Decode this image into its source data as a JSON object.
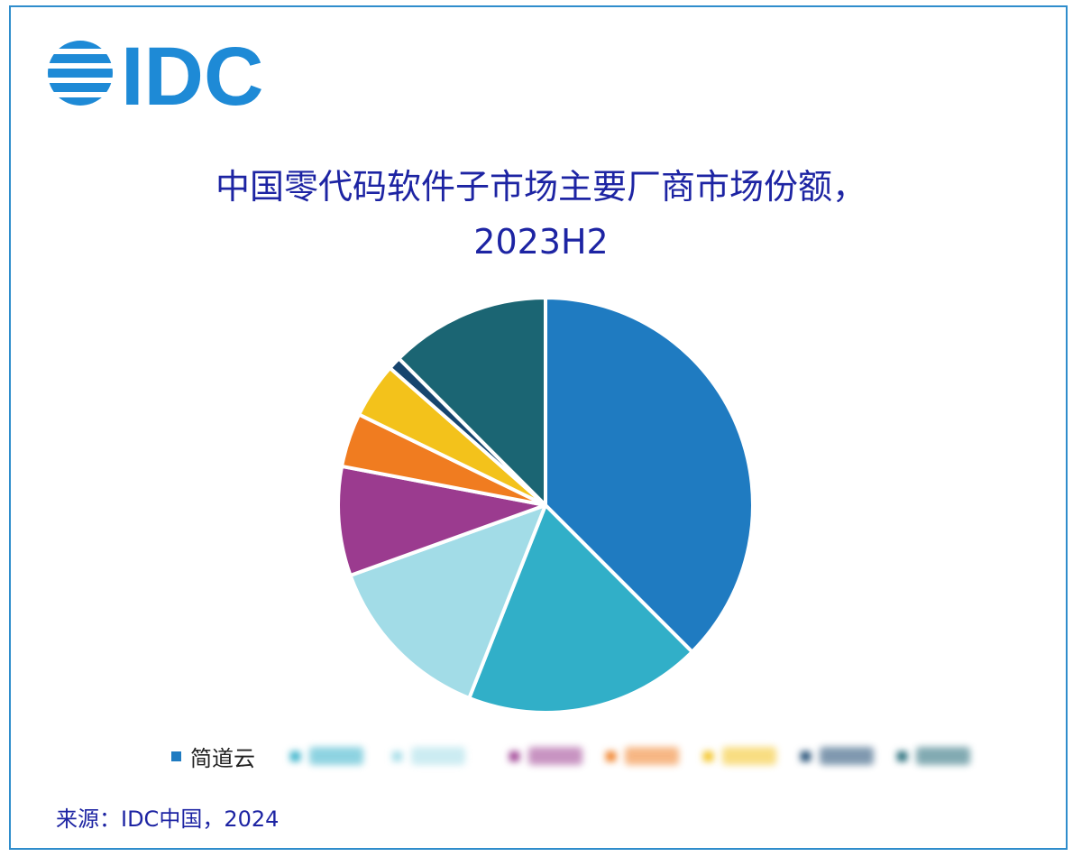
{
  "logo": {
    "text": "IDC",
    "color": "#1e8ad6"
  },
  "chart_data": {
    "type": "pie",
    "title": "中国零代码软件子市场主要厂商市场份额，",
    "subtitle": "2023H2",
    "slices": [
      {
        "name": "简道云",
        "value": 37.5,
        "color": "#1f7bc1",
        "legible": true
      },
      {
        "name": "",
        "value": 18.5,
        "color": "#31afc8",
        "legible": false
      },
      {
        "name": "",
        "value": 13.5,
        "color": "#a2dce7",
        "legible": false
      },
      {
        "name": "",
        "value": 8.5,
        "color": "#9b3b8f",
        "legible": false
      },
      {
        "name": "",
        "value": 4.2,
        "color": "#f07c20",
        "legible": false
      },
      {
        "name": "",
        "value": 4.3,
        "color": "#f3c21b",
        "legible": false
      },
      {
        "name": "",
        "value": 1.0,
        "color": "#17456e",
        "legible": false
      },
      {
        "name": "",
        "value": 12.5,
        "color": "#1b6573",
        "legible": false
      }
    ],
    "start_angle_deg": 0,
    "direction": "clockwise",
    "legend_position": "bottom"
  },
  "source": "来源：IDC中国，2024"
}
